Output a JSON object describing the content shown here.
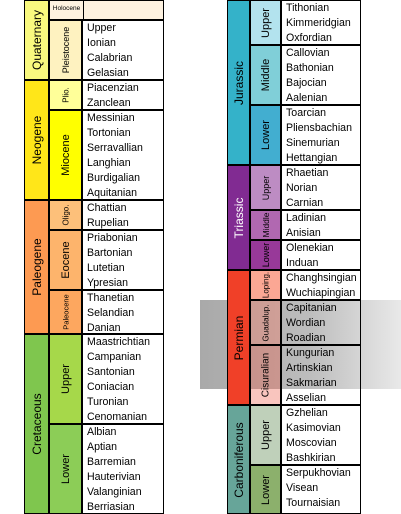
{
  "left_column": {
    "eras": [
      {
        "id": "quaternary",
        "label": "Quaternary",
        "color": "#f9f97f"
      },
      {
        "id": "neogene",
        "label": "Neogene",
        "color": "#ffe619"
      },
      {
        "id": "paleogene",
        "label": "Paleogene",
        "color": "#fd9a52"
      },
      {
        "id": "cretaceous",
        "label": "Cretaceous",
        "color": "#7fc64e"
      }
    ],
    "epochs": [
      {
        "id": "holocene",
        "label": "Holocene",
        "stages": []
      },
      {
        "id": "pleistocene",
        "label": "Pleistocene",
        "stages": [
          "Upper",
          "Ionian",
          "Calabrian",
          "Gelasian"
        ]
      },
      {
        "id": "pliocene",
        "label": "Plio.",
        "stages": [
          "Piacenzian",
          "Zanclean"
        ]
      },
      {
        "id": "miocene",
        "label": "Miocene",
        "stages": [
          "Messinian",
          "Tortonian",
          "Serravallian",
          "Langhian",
          "Burdigalian",
          "Aquitanian"
        ]
      },
      {
        "id": "oligocene",
        "label": "Oligo.",
        "stages": [
          "Chattian",
          "Rupelian"
        ]
      },
      {
        "id": "eocene",
        "label": "Eocene",
        "stages": [
          "Priabonian",
          "Bartonian",
          "Lutetian",
          "Ypresian"
        ]
      },
      {
        "id": "paleocene",
        "label": "Paleocene",
        "stages": [
          "Thanetian",
          "Selandian",
          "Danian"
        ]
      },
      {
        "id": "upper_cretaceous",
        "label": "Upper",
        "stages": [
          "Maastrichtian",
          "Campanian",
          "Santonian",
          "Coniacian",
          "Turonian",
          "Cenomanian"
        ]
      },
      {
        "id": "lower_cretaceous",
        "label": "Lower",
        "stages": [
          "Albian",
          "Aptian",
          "Barremian",
          "Hauterivian",
          "Valanginian",
          "Berriasian"
        ]
      }
    ]
  },
  "right_column": {
    "eras": [
      {
        "id": "jurassic",
        "label": "Jurassic",
        "color": "#34b2c9"
      },
      {
        "id": "triassic",
        "label": "Triassic",
        "color": "#812b92"
      },
      {
        "id": "permian",
        "label": "Permian",
        "color": "#f04028"
      },
      {
        "id": "carboniferous",
        "label": "Carboniferous",
        "color": "#67a599"
      }
    ],
    "epochs": [
      {
        "id": "upper_jurassic",
        "label": "Upper",
        "stages": [
          "Tithonian",
          "Kimmeridgian",
          "Oxfordian"
        ]
      },
      {
        "id": "middle_jurassic",
        "label": "Middle",
        "stages": [
          "Callovian",
          "Bathonian",
          "Bajocian",
          "Aalenian"
        ]
      },
      {
        "id": "lower_jurassic",
        "label": "Lower",
        "stages": [
          "Toarcian",
          "Pliensbachian",
          "Sinemurian",
          "Hettangian"
        ]
      },
      {
        "id": "upper_triassic",
        "label": "Upper",
        "stages": [
          "Rhaetian",
          "Norian",
          "Carnian"
        ]
      },
      {
        "id": "middle_triassic",
        "label": "Middle",
        "stages": [
          "Ladinian",
          "Anisian"
        ]
      },
      {
        "id": "lower_triassic",
        "label": "Lower",
        "stages": [
          "Olenekian",
          "Induan"
        ]
      },
      {
        "id": "lopingian",
        "label": "Loping.",
        "stages": [
          "Changhsingian",
          "Wuchiapingian"
        ]
      },
      {
        "id": "guadalupian",
        "label": "Guadalup.",
        "stages": [
          "Capitanian",
          "Wordian",
          "Roadian"
        ]
      },
      {
        "id": "cisuralian",
        "label": "Cisuralian",
        "stages": [
          "Kungurian",
          "Artinskian",
          "Sakmarian",
          "Asselian"
        ]
      },
      {
        "id": "upper_carboniferous",
        "label": "Upper",
        "stages": [
          "Gzhelian",
          "Kasimovian",
          "Moscovian",
          "Bashkirian"
        ]
      },
      {
        "id": "lower_carboniferous",
        "label": "Lower",
        "stages": [
          "Serpukhovian",
          "Visean",
          "Tournaisian"
        ]
      }
    ]
  },
  "highlight_color": "#b3b3b3"
}
